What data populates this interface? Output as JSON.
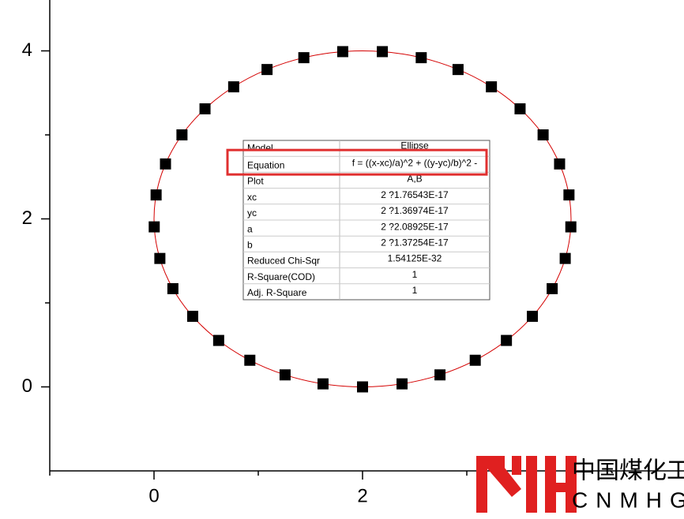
{
  "chart_data": {
    "type": "scatter",
    "xlim": [
      -1,
      5.07
    ],
    "ylim": [
      -1,
      4.6
    ],
    "xticks": [
      0,
      2
    ],
    "yticks": [
      0,
      2,
      4
    ],
    "xminor": [
      -1,
      1,
      3
    ],
    "yminor": [
      1,
      3
    ],
    "marker_color": "#000000",
    "series": [
      {
        "x": [
          2,
          2.379,
          2.743,
          3.081,
          3.38,
          3.629,
          3.819,
          3.944,
          3.998,
          3.98,
          3.89,
          3.732,
          3.511,
          3.236,
          2.916,
          2.563,
          2.19,
          1.81,
          1.437,
          1.084,
          0.764,
          0.489,
          0.268,
          0.11,
          0.02,
          0.002,
          0.056,
          0.181,
          0.371,
          0.62,
          0.919,
          1.257,
          1.621
        ],
        "values": [
          0,
          0.036,
          0.143,
          0.317,
          0.553,
          0.84,
          1.169,
          1.529,
          1.905,
          2.285,
          2.654,
          3.0,
          3.31,
          3.572,
          3.778,
          3.919,
          3.991,
          3.991,
          3.919,
          3.778,
          3.572,
          3.31,
          3.0,
          2.654,
          2.285,
          1.905,
          1.529,
          1.169,
          0.84,
          0.553,
          0.317,
          0.143,
          0.036
        ]
      }
    ],
    "fit": {
      "color": "#d40000",
      "xc": 2,
      "yc": 2,
      "a": 2,
      "b": 2
    },
    "table": {
      "header": [
        "Model",
        "Ellipse"
      ],
      "rows": [
        [
          "Equation",
          "f = ((x-xc)/a)^2 + ((y-yc)/b)^2 -"
        ],
        [
          "Plot",
          "A,B"
        ],
        [
          "xc",
          "2 ?1.76543E-17"
        ],
        [
          "yc",
          "2 ?1.36974E-17"
        ],
        [
          "a",
          "2 ?2.08925E-17"
        ],
        [
          "b",
          "2 ?1.37254E-17"
        ],
        [
          "Reduced Chi-Sqr",
          "1.54125E-32"
        ],
        [
          "R-Square(COD)",
          "1"
        ],
        [
          "Adj. R-Square",
          "1"
        ]
      ],
      "highlight_row": 0,
      "highlight_color": "#e03030"
    },
    "watermark": {
      "logo": "MH",
      "line1": "中国煤化工",
      "line2": "CNMHG",
      "color": "#e02020"
    }
  }
}
